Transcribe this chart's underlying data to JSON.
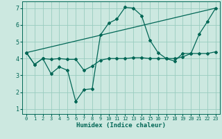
{
  "xlabel": "Humidex (Indice chaleur)",
  "xlim": [
    -0.5,
    23.5
  ],
  "ylim": [
    0.7,
    7.4
  ],
  "xticks": [
    0,
    1,
    2,
    3,
    4,
    5,
    6,
    7,
    8,
    9,
    10,
    11,
    12,
    13,
    14,
    15,
    16,
    17,
    18,
    19,
    20,
    21,
    22,
    23
  ],
  "yticks": [
    1,
    2,
    3,
    4,
    5,
    6,
    7
  ],
  "bg_color": "#cce8e0",
  "line_color": "#006655",
  "grid_color": "#99ccbf",
  "line1_x": [
    0,
    1,
    2,
    3,
    4,
    5,
    6,
    7,
    8,
    9,
    10,
    11,
    12,
    13,
    14,
    15,
    16,
    17,
    18,
    19,
    20,
    21,
    22,
    23
  ],
  "line1_y": [
    4.35,
    3.65,
    4.0,
    3.1,
    3.5,
    3.3,
    1.45,
    2.15,
    2.2,
    5.4,
    6.1,
    6.35,
    7.05,
    7.0,
    6.55,
    5.1,
    4.35,
    4.0,
    3.85,
    4.3,
    4.3,
    5.45,
    6.2,
    7.0
  ],
  "line2_x": [
    0,
    1,
    2,
    3,
    4,
    5,
    6,
    7,
    8,
    9,
    10,
    11,
    12,
    13,
    14,
    15,
    16,
    17,
    18,
    19,
    20,
    21,
    22,
    23
  ],
  "line2_y": [
    4.35,
    3.65,
    4.0,
    3.95,
    4.0,
    3.95,
    3.95,
    3.3,
    3.55,
    3.9,
    4.0,
    4.0,
    4.0,
    4.05,
    4.05,
    4.0,
    4.0,
    4.0,
    4.0,
    4.1,
    4.3,
    4.3,
    4.3,
    4.4
  ],
  "line3_x": [
    0,
    23
  ],
  "line3_y": [
    4.35,
    7.0
  ]
}
